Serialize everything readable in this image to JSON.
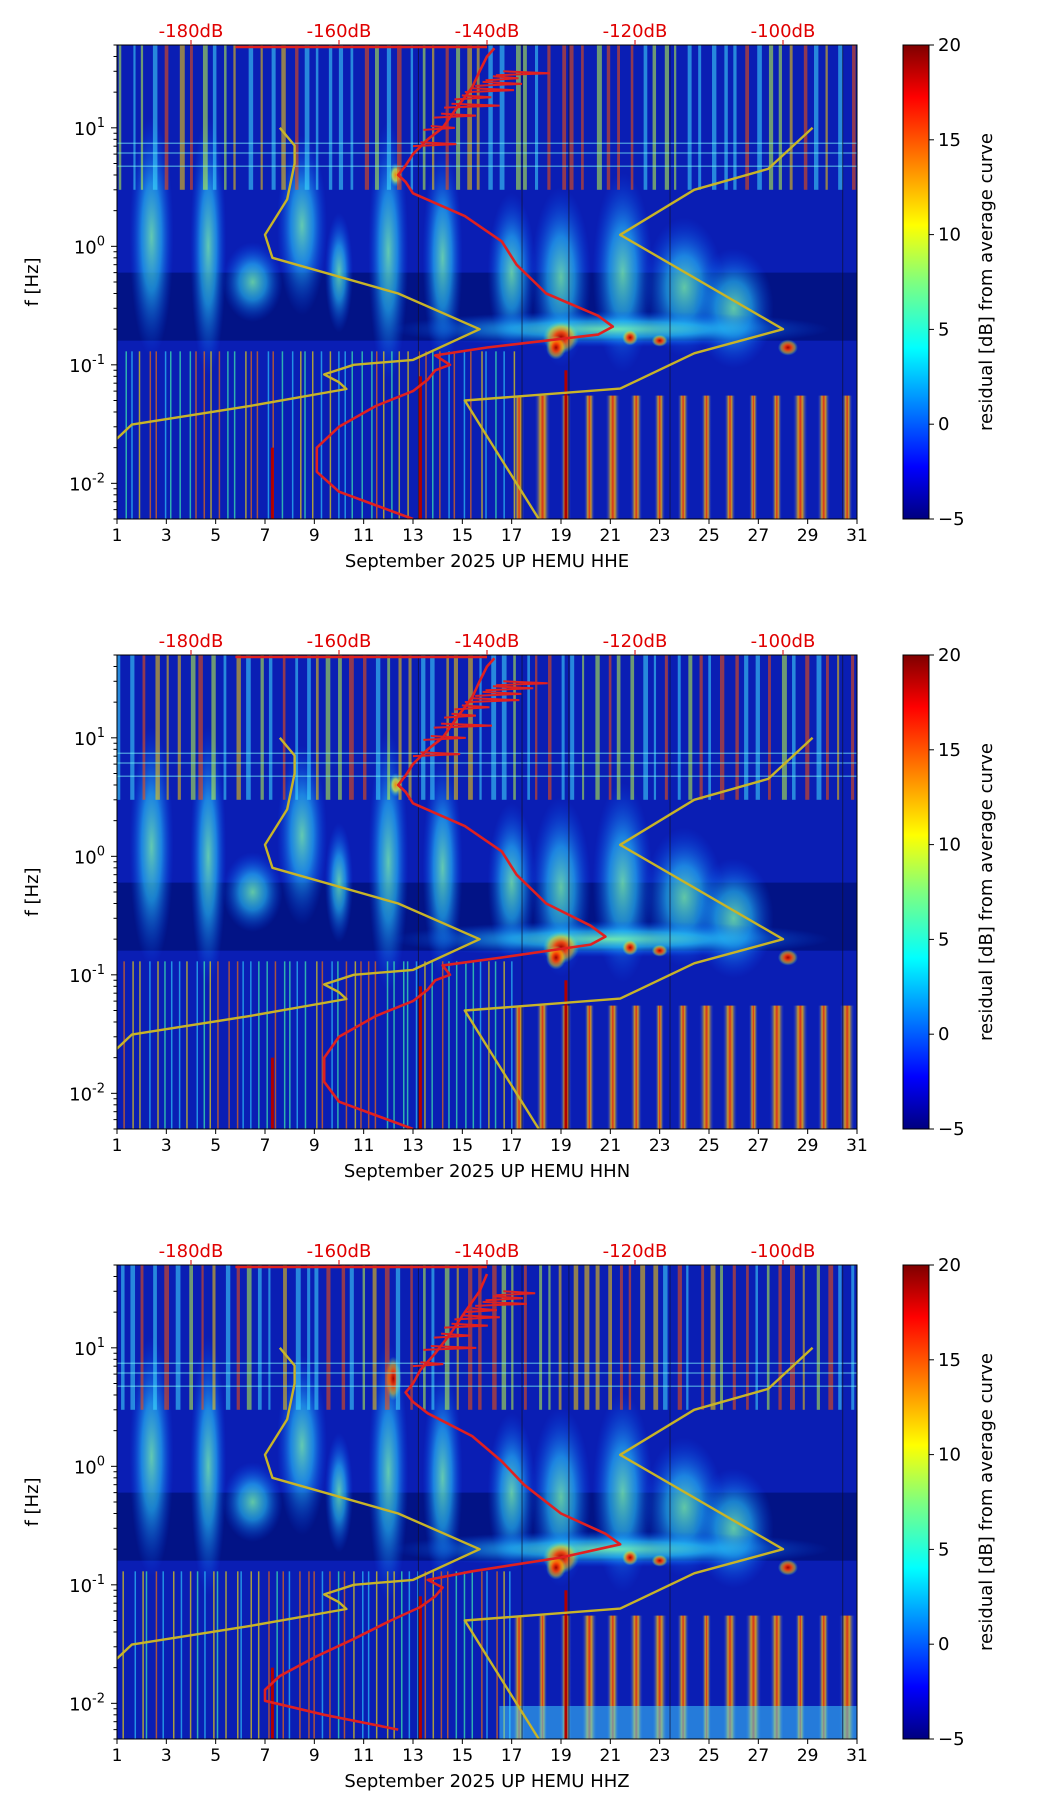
{
  "chart_data": [
    {
      "type": "heatmap",
      "channel": "HHE",
      "xlabel": "September 2025 UP HEMU  HHE",
      "ylabel": "f [Hz]",
      "x_ticks": [
        "1",
        "3",
        "5",
        "7",
        "9",
        "11",
        "13",
        "15",
        "17",
        "19",
        "21",
        "23",
        "25",
        "27",
        "29",
        "31"
      ],
      "xlim": [
        1,
        31
      ],
      "ylim_hz": [
        0.005,
        50
      ],
      "y_ticks": [
        {
          "value": 0.01,
          "base": "10",
          "exp": "-2"
        },
        {
          "value": 0.1,
          "base": "10",
          "exp": "-1"
        },
        {
          "value": 1,
          "base": "10",
          "exp": "0"
        },
        {
          "value": 10,
          "base": "10",
          "exp": "1"
        }
      ],
      "db_ticks": [
        "-180dB",
        "-160dB",
        "-140dB",
        "-120dB",
        "-100dB"
      ],
      "db_range": [
        -190,
        -90
      ],
      "colorbar": {
        "label": "residual [dB] from average curve",
        "ticks": [
          "20",
          "15",
          "10",
          "5",
          "0",
          "−5"
        ],
        "range": [
          -5,
          20
        ]
      },
      "series": [
        {
          "name": "noise model (yellow)",
          "color": "#c8b428",
          "points": [
            [
              -191,
              0.005
            ],
            [
              -190.5,
              0.0083
            ],
            [
              -191,
              0.0104
            ],
            [
              -191,
              0.0208
            ],
            [
              -188,
              0.0313
            ],
            [
              -172,
              0.045
            ],
            [
              -159,
              0.0625
            ],
            [
              -160,
              0.0714
            ],
            [
              -162,
              0.083
            ],
            [
              -158,
              0.1
            ],
            [
              -150,
              0.11
            ],
            [
              -141,
              0.2
            ],
            [
              -152,
              0.4
            ],
            [
              -169,
              0.8
            ],
            [
              -170,
              1.25
            ],
            [
              -167,
              2.5
            ],
            [
              -166,
              5
            ],
            [
              -166,
              7.1
            ],
            [
              -168,
              10
            ]
          ]
        },
        {
          "name": "noise model (yellow) high",
          "color": "#c8b428",
          "points": [
            [
              -133,
              0.005
            ],
            [
              -140,
              0.025
            ],
            [
              -143,
              0.05
            ],
            [
              -122,
              0.063
            ],
            [
              -112,
              0.125
            ],
            [
              -100,
              0.2
            ],
            [
              -122,
              1.25
            ],
            [
              -112,
              3
            ],
            [
              -102,
              4.5
            ],
            [
              -96,
              10
            ]
          ]
        },
        {
          "name": "median PSD (red)",
          "color": "#e02020",
          "points": [
            [
              -150,
              0.005
            ],
            [
              -160,
              0.0085
            ],
            [
              -163,
              0.0125
            ],
            [
              -163,
              0.02
            ],
            [
              -160,
              0.03
            ],
            [
              -155,
              0.045
            ],
            [
              -150,
              0.06
            ],
            [
              -148,
              0.075
            ],
            [
              -147,
              0.09
            ],
            [
              -145,
              0.1
            ],
            [
              -147,
              0.12
            ],
            [
              -140,
              0.14
            ],
            [
              -125,
              0.18
            ],
            [
              -123,
              0.21
            ],
            [
              -125,
              0.26
            ],
            [
              -132,
              0.4
            ],
            [
              -136,
              0.7
            ],
            [
              -138,
              1.1
            ],
            [
              -143,
              1.8
            ],
            [
              -150,
              2.8
            ],
            [
              -151,
              3.5
            ],
            [
              -152,
              4
            ],
            [
              -151,
              4.8
            ],
            [
              -150,
              6
            ],
            [
              -148,
              8
            ],
            [
              -146,
              10
            ],
            [
              -144,
              15
            ],
            [
              -142,
              22
            ],
            [
              -141,
              30
            ],
            [
              -140,
              40
            ],
            [
              -139,
              47
            ]
          ]
        }
      ]
    },
    {
      "type": "heatmap",
      "channel": "HHN",
      "xlabel": "September 2025 UP HEMU  HHN",
      "ylabel": "f [Hz]",
      "x_ticks": [
        "1",
        "3",
        "5",
        "7",
        "9",
        "11",
        "13",
        "15",
        "17",
        "19",
        "21",
        "23",
        "25",
        "27",
        "29",
        "31"
      ],
      "xlim": [
        1,
        31
      ],
      "ylim_hz": [
        0.005,
        50
      ],
      "y_ticks": [
        {
          "value": 0.01,
          "base": "10",
          "exp": "-2"
        },
        {
          "value": 0.1,
          "base": "10",
          "exp": "-1"
        },
        {
          "value": 1,
          "base": "10",
          "exp": "0"
        },
        {
          "value": 10,
          "base": "10",
          "exp": "1"
        }
      ],
      "db_ticks": [
        "-180dB",
        "-160dB",
        "-140dB",
        "-120dB",
        "-100dB"
      ],
      "db_range": [
        -190,
        -90
      ],
      "colorbar": {
        "label": "residual [dB] from average curve",
        "ticks": [
          "20",
          "15",
          "10",
          "5",
          "0",
          "−5"
        ],
        "range": [
          -5,
          20
        ]
      },
      "series": [
        {
          "name": "noise model (yellow)",
          "color": "#c8b428",
          "points": [
            [
              -191,
              0.005
            ],
            [
              -190.5,
              0.0083
            ],
            [
              -191,
              0.0104
            ],
            [
              -191,
              0.0208
            ],
            [
              -188,
              0.0313
            ],
            [
              -172,
              0.045
            ],
            [
              -159,
              0.0625
            ],
            [
              -160,
              0.0714
            ],
            [
              -162,
              0.083
            ],
            [
              -158,
              0.1
            ],
            [
              -150,
              0.11
            ],
            [
              -141,
              0.2
            ],
            [
              -152,
              0.4
            ],
            [
              -169,
              0.8
            ],
            [
              -170,
              1.25
            ],
            [
              -167,
              2.5
            ],
            [
              -166,
              5
            ],
            [
              -166,
              7.1
            ],
            [
              -168,
              10
            ]
          ]
        },
        {
          "name": "noise model (yellow) high",
          "color": "#c8b428",
          "points": [
            [
              -133,
              0.005
            ],
            [
              -140,
              0.025
            ],
            [
              -143,
              0.05
            ],
            [
              -122,
              0.063
            ],
            [
              -112,
              0.125
            ],
            [
              -100,
              0.2
            ],
            [
              -122,
              1.25
            ],
            [
              -112,
              3
            ],
            [
              -102,
              4.5
            ],
            [
              -96,
              10
            ]
          ]
        },
        {
          "name": "median PSD (red)",
          "color": "#e02020",
          "points": [
            [
              -150,
              0.005
            ],
            [
              -160,
              0.0085
            ],
            [
              -162,
              0.0125
            ],
            [
              -162,
              0.02
            ],
            [
              -160,
              0.03
            ],
            [
              -155,
              0.045
            ],
            [
              -150,
              0.06
            ],
            [
              -148,
              0.075
            ],
            [
              -147,
              0.09
            ],
            [
              -145,
              0.1
            ],
            [
              -146,
              0.12
            ],
            [
              -138,
              0.14
            ],
            [
              -126,
              0.18
            ],
            [
              -124,
              0.21
            ],
            [
              -126,
              0.26
            ],
            [
              -132,
              0.4
            ],
            [
              -136,
              0.7
            ],
            [
              -138,
              1.1
            ],
            [
              -143,
              1.8
            ],
            [
              -150,
              2.8
            ],
            [
              -151,
              3.5
            ],
            [
              -152,
              4
            ],
            [
              -151,
              4.8
            ],
            [
              -150,
              6
            ],
            [
              -148,
              8
            ],
            [
              -146,
              10
            ],
            [
              -144,
              15
            ],
            [
              -142,
              22
            ],
            [
              -141,
              30
            ],
            [
              -140,
              40
            ],
            [
              -139,
              47
            ]
          ]
        }
      ]
    },
    {
      "type": "heatmap",
      "channel": "HHZ",
      "xlabel": "September 2025 UP HEMU  HHZ",
      "ylabel": "f [Hz]",
      "x_ticks": [
        "1",
        "3",
        "5",
        "7",
        "9",
        "11",
        "13",
        "15",
        "17",
        "19",
        "21",
        "23",
        "25",
        "27",
        "29",
        "31"
      ],
      "xlim": [
        1,
        31
      ],
      "ylim_hz": [
        0.005,
        50
      ],
      "y_ticks": [
        {
          "value": 0.01,
          "base": "10",
          "exp": "-2"
        },
        {
          "value": 0.1,
          "base": "10",
          "exp": "-1"
        },
        {
          "value": 1,
          "base": "10",
          "exp": "0"
        },
        {
          "value": 10,
          "base": "10",
          "exp": "1"
        }
      ],
      "db_ticks": [
        "-180dB",
        "-160dB",
        "-140dB",
        "-120dB",
        "-100dB"
      ],
      "db_range": [
        -190,
        -90
      ],
      "colorbar": {
        "label": "residual [dB] from average curve",
        "ticks": [
          "20",
          "15",
          "10",
          "5",
          "0",
          "−5"
        ],
        "range": [
          -5,
          20
        ]
      },
      "series": [
        {
          "name": "noise model (yellow)",
          "color": "#c8b428",
          "points": [
            [
              -191,
              0.005
            ],
            [
              -190.5,
              0.0083
            ],
            [
              -191,
              0.0104
            ],
            [
              -191,
              0.0208
            ],
            [
              -188,
              0.0313
            ],
            [
              -172,
              0.045
            ],
            [
              -159,
              0.0625
            ],
            [
              -160,
              0.0714
            ],
            [
              -162,
              0.083
            ],
            [
              -158,
              0.1
            ],
            [
              -150,
              0.11
            ],
            [
              -141,
              0.2
            ],
            [
              -152,
              0.4
            ],
            [
              -169,
              0.8
            ],
            [
              -170,
              1.25
            ],
            [
              -167,
              2.5
            ],
            [
              -166,
              5
            ],
            [
              -166,
              7.1
            ],
            [
              -168,
              10
            ]
          ]
        },
        {
          "name": "noise model (yellow) high",
          "color": "#c8b428",
          "points": [
            [
              -133,
              0.005
            ],
            [
              -140,
              0.025
            ],
            [
              -143,
              0.05
            ],
            [
              -122,
              0.063
            ],
            [
              -112,
              0.125
            ],
            [
              -100,
              0.2
            ],
            [
              -122,
              1.25
            ],
            [
              -112,
              3
            ],
            [
              -102,
              4.5
            ],
            [
              -96,
              10
            ]
          ]
        },
        {
          "name": "median PSD (red)",
          "color": "#e02020",
          "points": [
            [
              -152,
              0.006
            ],
            [
              -162,
              0.008
            ],
            [
              -170,
              0.0105
            ],
            [
              -170,
              0.013
            ],
            [
              -168,
              0.017
            ],
            [
              -163,
              0.025
            ],
            [
              -158,
              0.035
            ],
            [
              -153,
              0.05
            ],
            [
              -149,
              0.065
            ],
            [
              -147,
              0.08
            ],
            [
              -146,
              0.095
            ],
            [
              -148,
              0.11
            ],
            [
              -142,
              0.13
            ],
            [
              -130,
              0.17
            ],
            [
              -122,
              0.22
            ],
            [
              -124,
              0.27
            ],
            [
              -130,
              0.4
            ],
            [
              -135,
              0.7
            ],
            [
              -138,
              1.1
            ],
            [
              -142,
              1.8
            ],
            [
              -148,
              2.8
            ],
            [
              -150,
              3.5
            ],
            [
              -151,
              4.2
            ],
            [
              -150,
              5
            ],
            [
              -149,
              6.5
            ],
            [
              -147,
              9
            ],
            [
              -145,
              13
            ],
            [
              -143,
              20
            ],
            [
              -141,
              30
            ],
            [
              -140,
              42
            ]
          ]
        }
      ]
    }
  ]
}
